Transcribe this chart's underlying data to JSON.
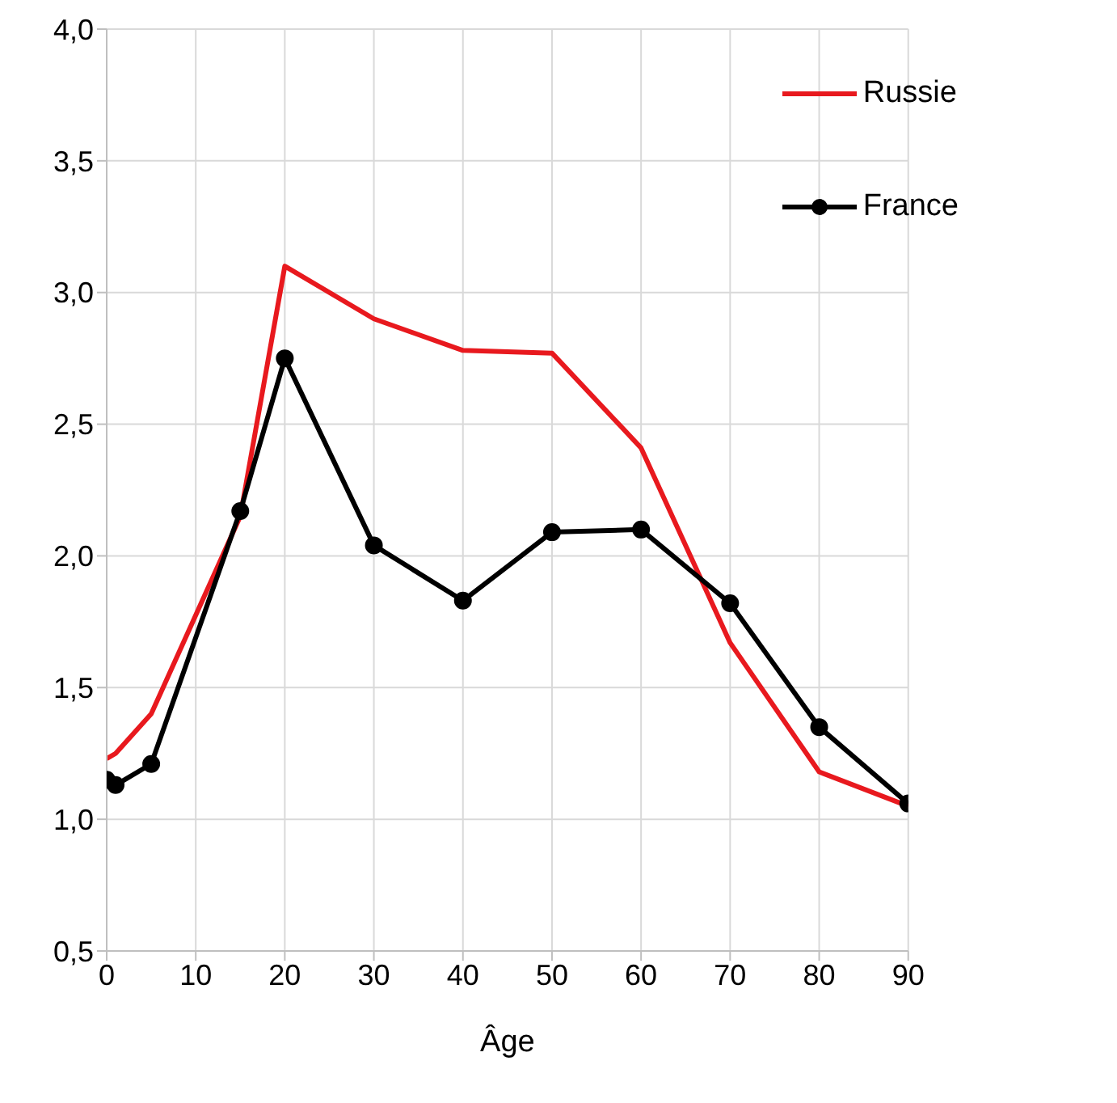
{
  "chart_data": {
    "type": "line",
    "xlabel": "Âge",
    "xlim": [
      0,
      90
    ],
    "xticks": [
      0,
      10,
      20,
      30,
      40,
      50,
      60,
      70,
      80,
      90
    ],
    "ylim": [
      0.5,
      4.0
    ],
    "yticks": [
      {
        "value": 0.5,
        "label": "0,5"
      },
      {
        "value": 1.0,
        "label": "1,0"
      },
      {
        "value": 1.5,
        "label": "1,5"
      },
      {
        "value": 2.0,
        "label": "2,0"
      },
      {
        "value": 2.5,
        "label": "2,5"
      },
      {
        "value": 3.0,
        "label": "3,0"
      },
      {
        "value": 3.5,
        "label": "3,5"
      },
      {
        "value": 4.0,
        "label": "4,0"
      }
    ],
    "grid": true,
    "legend": "top right",
    "series": [
      {
        "name": "Russie",
        "color": "#e8191e",
        "marker": "none",
        "x": [
          0,
          1,
          5,
          15,
          20,
          30,
          40,
          50,
          60,
          70,
          80,
          90
        ],
        "values": [
          1.23,
          1.25,
          1.4,
          2.15,
          3.1,
          2.9,
          2.78,
          2.77,
          2.41,
          1.67,
          1.18,
          1.05
        ]
      },
      {
        "name": "France",
        "color": "#000000",
        "marker": "circle",
        "x": [
          0,
          1,
          5,
          15,
          20,
          30,
          40,
          50,
          60,
          70,
          80,
          90
        ],
        "values": [
          1.15,
          1.13,
          1.21,
          2.17,
          2.75,
          2.04,
          1.83,
          2.09,
          2.1,
          1.82,
          1.35,
          1.06
        ]
      }
    ]
  }
}
